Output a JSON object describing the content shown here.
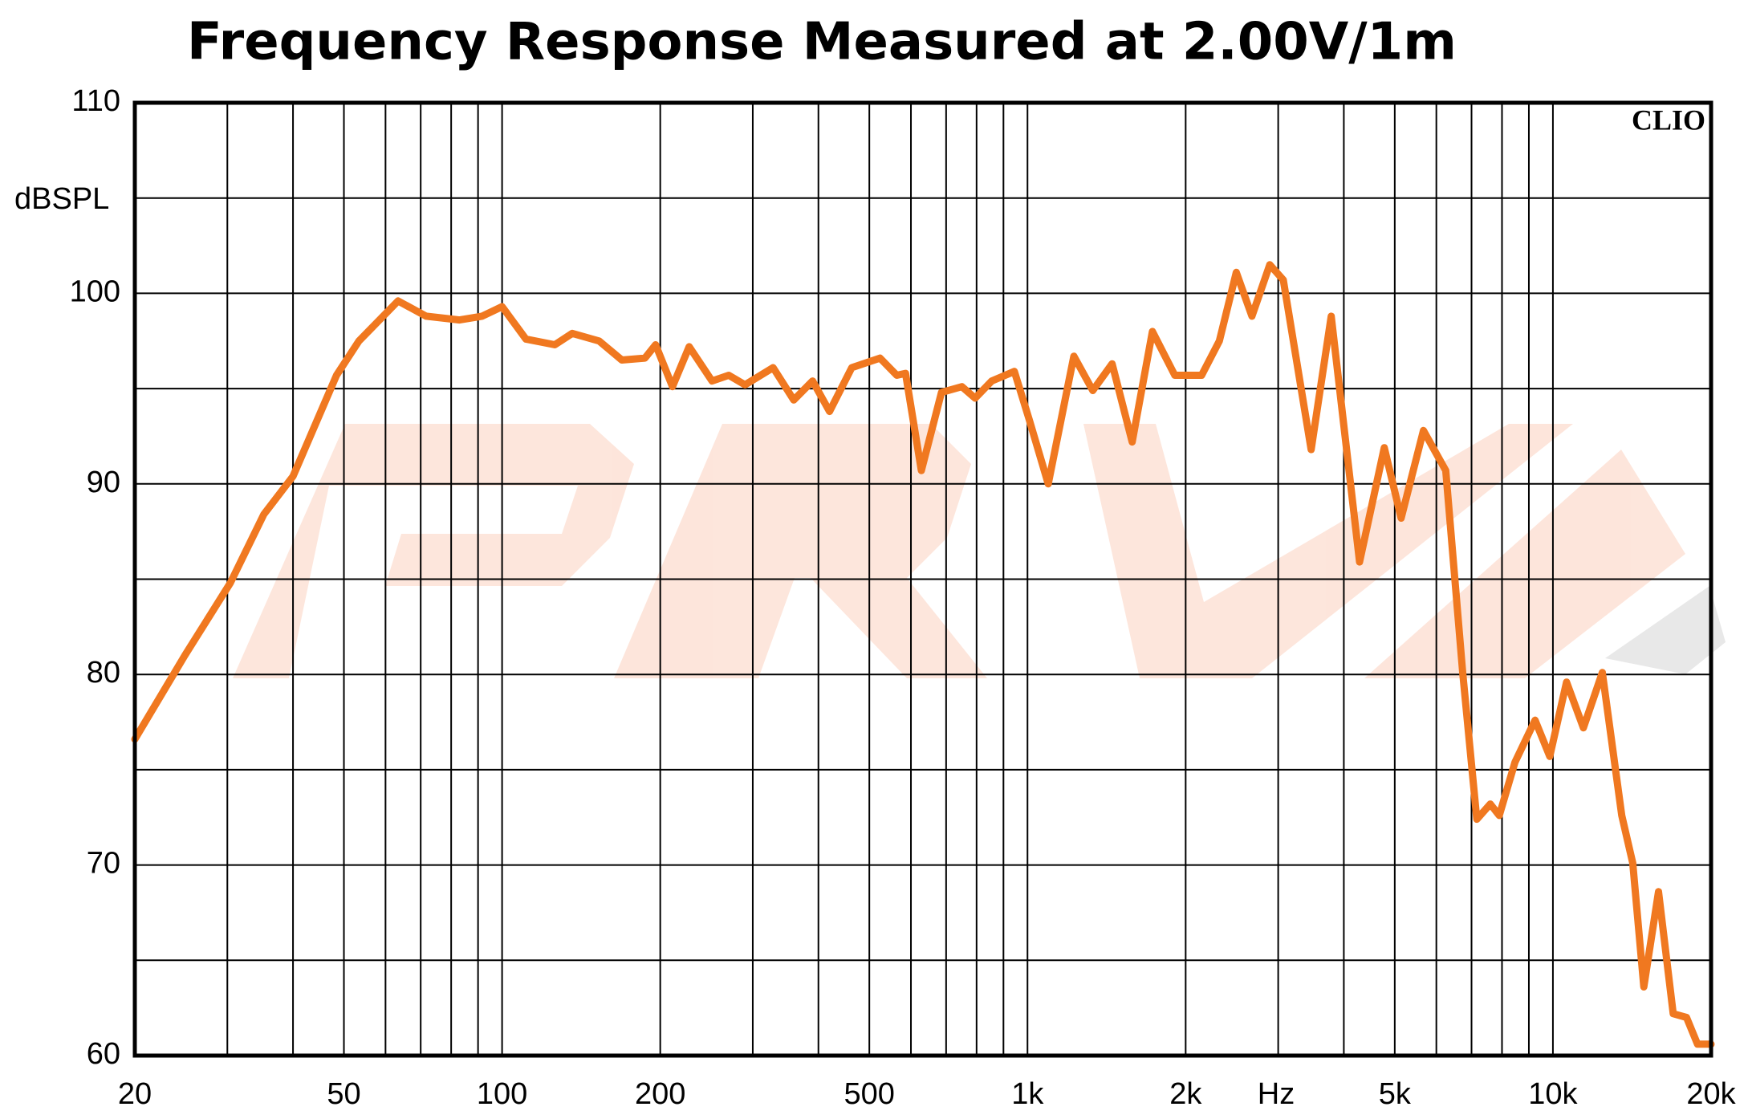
{
  "chart_data": {
    "type": "line",
    "title": "Frequency Response Measured at 2.00V/1m",
    "y_label": "dBSPL",
    "x_label": "Hz",
    "watermark": "CLIO",
    "x_scale": "log",
    "grid": true,
    "xlim": [
      20,
      20000
    ],
    "ylim": [
      60,
      110
    ],
    "xticks": [
      20,
      50,
      100,
      200,
      500,
      {
        "value": 1000,
        "label": "1k"
      },
      {
        "value": 2000,
        "label": "2k"
      },
      {
        "value": 5000,
        "label": "5k"
      },
      {
        "value": 10000,
        "label": "10k"
      },
      {
        "value": 20000,
        "label": "20k"
      }
    ],
    "x_minor_grid": [
      30,
      40,
      60,
      70,
      80,
      90,
      300,
      400,
      600,
      700,
      800,
      900,
      3000,
      4000,
      6000,
      7000,
      8000,
      9000
    ],
    "yticks": [
      60,
      70,
      80,
      90,
      100,
      110
    ],
    "y_minor_grid": [
      65,
      75,
      85,
      95,
      105
    ],
    "x": [
      20,
      24.9,
      30.4,
      35.2,
      40,
      48.4,
      53.4,
      63.4,
      71.7,
      83,
      91.6,
      100,
      111,
      126,
      136,
      153,
      169,
      187,
      196,
      211,
      227,
      251,
      270,
      290,
      328,
      359,
      390,
      420,
      463,
      524,
      564,
      586,
      628,
      686,
      750,
      795,
      855,
      944,
      1007,
      1095,
      1225,
      1331,
      1449,
      1582,
      1729,
      1907,
      2145,
      2318,
      2497,
      2674,
      2891,
      3068,
      3467,
      3785,
      4286,
      4775,
      5141,
      5669,
      6253,
      6733,
      7164,
      7600,
      7905,
      8470,
      9249,
      9862,
      10617,
      11429,
      12418,
      13519,
      14190,
      14895,
      15884,
      16943,
      17958,
      18849,
      20000
    ],
    "series": [
      {
        "color": "#f07820",
        "values": [
          76.6,
          81.0,
          84.8,
          88.4,
          90.4,
          95.7,
          97.5,
          99.6,
          98.8,
          98.6,
          98.8,
          99.3,
          97.6,
          97.3,
          97.9,
          97.5,
          96.5,
          96.6,
          97.3,
          95.1,
          97.2,
          95.4,
          95.7,
          95.2,
          96.1,
          94.4,
          95.4,
          93.8,
          96.1,
          96.6,
          95.7,
          95.8,
          90.7,
          94.8,
          95.1,
          94.5,
          95.4,
          95.9,
          93.4,
          90.0,
          96.7,
          94.9,
          96.3,
          92.2,
          98.0,
          95.7,
          95.7,
          97.5,
          101.1,
          98.8,
          101.5,
          100.7,
          91.8,
          98.8,
          85.9,
          91.9,
          88.2,
          92.8,
          90.7,
          80.1,
          72.4,
          73.2,
          72.6,
          75.4,
          77.6,
          75.7,
          79.6,
          77.2,
          80.1,
          72.6,
          70.1,
          63.6,
          68.6,
          62.2,
          62.0,
          60.6,
          60.6
        ]
      }
    ]
  }
}
